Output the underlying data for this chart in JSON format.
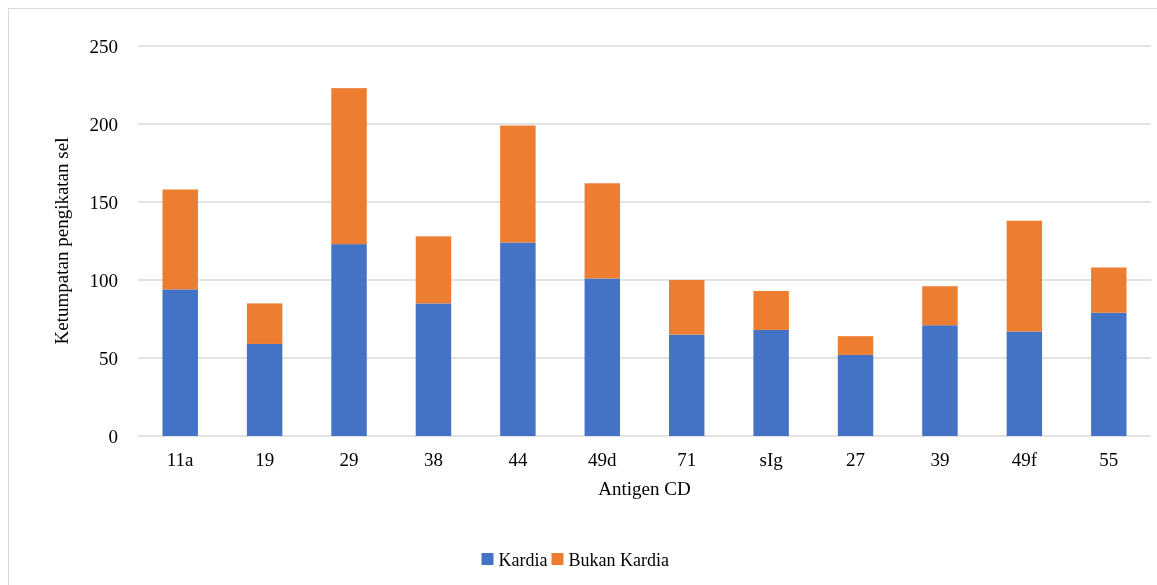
{
  "chart_data": {
    "type": "bar",
    "stacked": true,
    "xlabel": "Antigen CD",
    "ylabel": "Ketumpatan pengikatan sel",
    "categories": [
      "11a",
      "19",
      "29",
      "38",
      "44",
      "49d",
      "71",
      "sIg",
      "27",
      "39",
      "49f",
      "55"
    ],
    "series": [
      {
        "name": "Kardia",
        "color": "#4472c4",
        "values": [
          94,
          59,
          123,
          85,
          124,
          101,
          65,
          68,
          52,
          71,
          67,
          79
        ]
      },
      {
        "name": "Bukan Kardia",
        "color": "#ed7d31",
        "values": [
          64,
          26,
          100,
          43,
          75,
          61,
          35,
          25,
          12,
          25,
          71,
          29
        ]
      }
    ],
    "ylim": [
      0,
      250
    ],
    "yticks": [
      0,
      50,
      100,
      150,
      200,
      250
    ],
    "grid": "y",
    "legend": "bottom"
  }
}
